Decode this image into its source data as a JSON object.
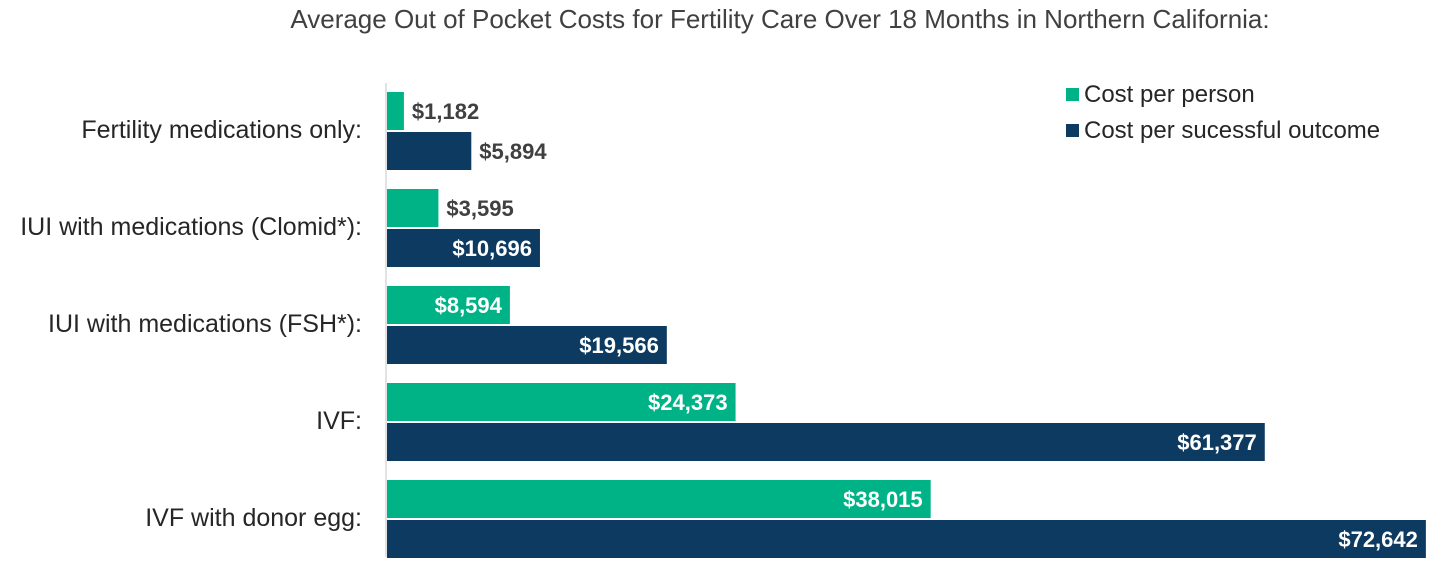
{
  "chart_data": {
    "type": "bar",
    "orientation": "horizontal",
    "title": "Average Out of Pocket Costs for Fertility Care Over 18 Months in Northern California:",
    "categories": [
      "Fertility medications only:",
      "IUI with medications (Clomid*):",
      "IUI with medications (FSH*):",
      "IVF:",
      "IVF with donor egg:"
    ],
    "series": [
      {
        "name": "Cost per person",
        "color": "#00B386",
        "values": [
          1182,
          3595,
          8594,
          24373,
          38015
        ],
        "labels": [
          "$1,182",
          "$3,595",
          "$8,594",
          "$24,373",
          "$38,015"
        ]
      },
      {
        "name": "Cost per sucessful outcome",
        "color": "#0D3A60",
        "values": [
          5894,
          10696,
          19566,
          61377,
          72642
        ],
        "labels": [
          "$5,894",
          "$10,696",
          "$19,566",
          "$61,377",
          "$72,642"
        ]
      }
    ],
    "xlim": [
      0,
      73000
    ],
    "grid": false,
    "legend_position": "top-right",
    "label_color_dark": "#404040",
    "label_color_light": "#FFFFFF"
  }
}
